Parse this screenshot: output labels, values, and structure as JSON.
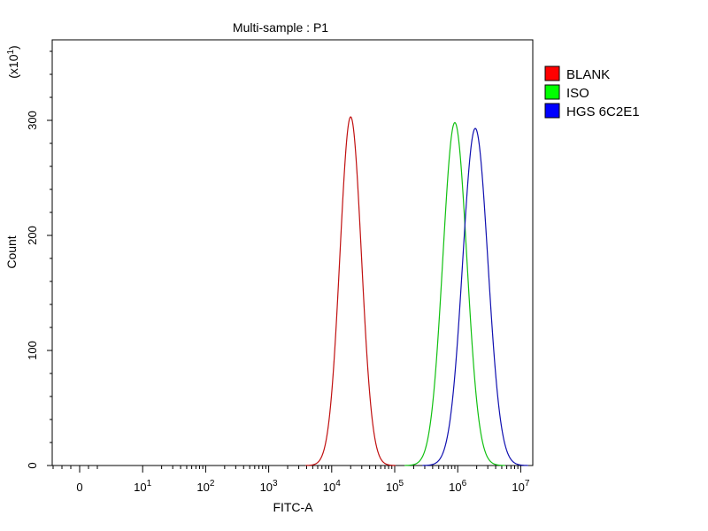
{
  "chart_data": {
    "type": "line",
    "title": "Multi-sample : P1",
    "xlabel": "FITC-A",
    "ylabel": "Count",
    "y_multiplier_label": "(x10",
    "y_multiplier_exp": "1",
    "y_multiplier_close": ")",
    "x_scale": "log",
    "xlim": [
      0,
      10000000
    ],
    "ylim": [
      0,
      370
    ],
    "y_ticks": [
      {
        "value": 0,
        "label": "0"
      },
      {
        "value": 100,
        "label": "100"
      },
      {
        "value": 200,
        "label": "200"
      },
      {
        "value": 300,
        "label": "300"
      }
    ],
    "x_ticks": [
      {
        "value": 0,
        "base": "0",
        "exp": ""
      },
      {
        "value": 10,
        "base": "10",
        "exp": "1"
      },
      {
        "value": 100,
        "base": "10",
        "exp": "2"
      },
      {
        "value": 1000,
        "base": "10",
        "exp": "3"
      },
      {
        "value": 10000,
        "base": "10",
        "exp": "4"
      },
      {
        "value": 100000,
        "base": "10",
        "exp": "5"
      },
      {
        "value": 1000000,
        "base": "10",
        "exp": "6"
      },
      {
        "value": 10000000,
        "base": "10",
        "exp": "7"
      }
    ],
    "grid": false,
    "legend_position": "right",
    "series": [
      {
        "name": "BLANK",
        "color": "#c01010",
        "legend_color": "#ff0000",
        "peak_x": 20000,
        "peak_y": 303,
        "spread_decades": 0.17
      },
      {
        "name": "ISO",
        "color": "#10c010",
        "legend_color": "#00ff00",
        "peak_x": 900000,
        "peak_y": 298,
        "spread_decades": 0.19
      },
      {
        "name": "HGS 6C2E1",
        "color": "#1010b0",
        "legend_color": "#0000ff",
        "peak_x": 1900000,
        "peak_y": 293,
        "spread_decades": 0.2
      }
    ]
  }
}
